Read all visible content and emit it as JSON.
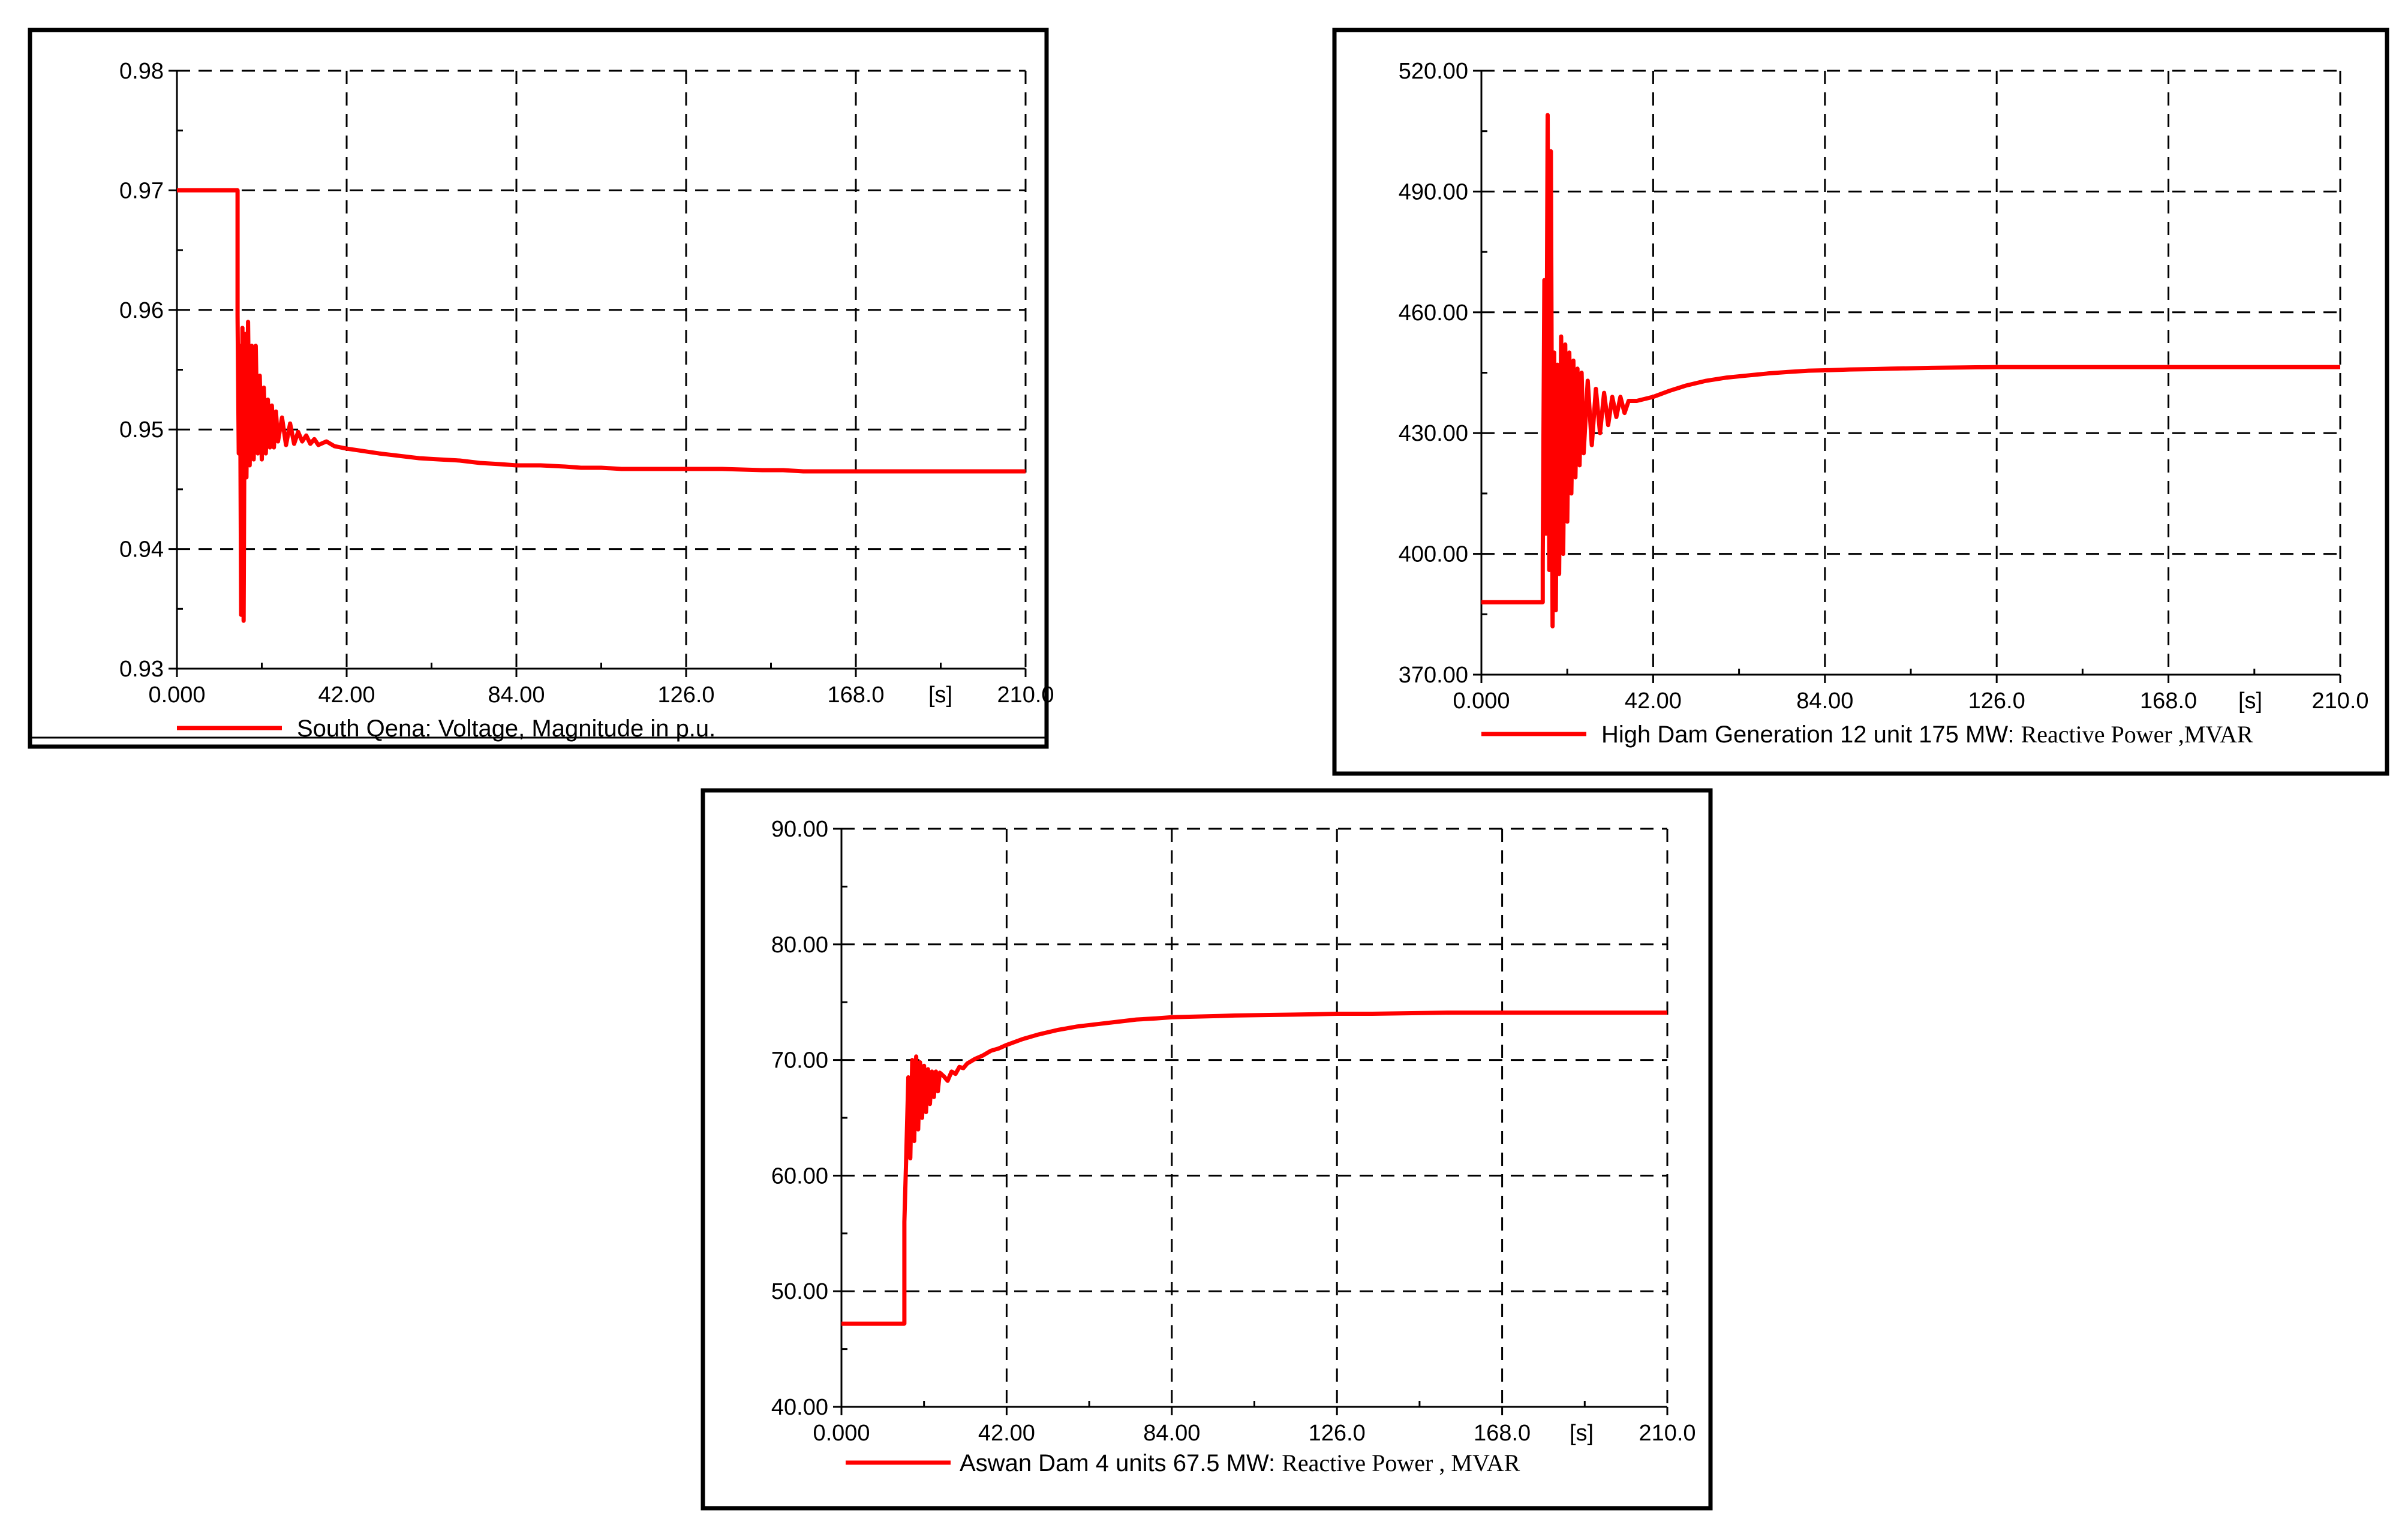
{
  "colors": {
    "trace": "#ff0000",
    "grid": "#000000",
    "frame": "#000000",
    "background": "#ffffff"
  },
  "chart_data": [
    {
      "id": "south-qena-voltage",
      "type": "line",
      "legend": {
        "parts": [
          {
            "text": "South Qena: Voltage, Magnitude in p.u.",
            "font": "sans"
          }
        ]
      },
      "x_unit_label": "[s]",
      "xlim": [
        0,
        210
      ],
      "ylim": [
        0.93,
        0.98
      ],
      "x_ticks": [
        "0.000",
        "42.00",
        "84.00",
        "126.0",
        "168.0",
        "210.0"
      ],
      "y_ticks": [
        "0.93",
        "0.94",
        "0.95",
        "0.96",
        "0.97",
        "0.98"
      ],
      "grid": true,
      "series": [
        {
          "name": "South Qena: Voltage, Magnitude in p.u.",
          "x": [
            0,
            15,
            15,
            15.3,
            15.6,
            15.9,
            16.2,
            16.5,
            16.8,
            17.2,
            17.6,
            18,
            18.5,
            19,
            19.5,
            20,
            20.5,
            21,
            21.5,
            22,
            22.5,
            23,
            23.5,
            24,
            24.5,
            25,
            26,
            27,
            28,
            29,
            30,
            31,
            32,
            33,
            34,
            35,
            37,
            39,
            42,
            46,
            50,
            55,
            60,
            65,
            70,
            75,
            80,
            84,
            90,
            96,
            100,
            105,
            110,
            120,
            126,
            135,
            145,
            150,
            155,
            162,
            168,
            180,
            190,
            200,
            210
          ],
          "y": [
            0.97,
            0.97,
            0.9595,
            0.948,
            0.957,
            0.9345,
            0.9585,
            0.934,
            0.958,
            0.946,
            0.959,
            0.947,
            0.957,
            0.9475,
            0.957,
            0.948,
            0.9545,
            0.9475,
            0.9535,
            0.948,
            0.9525,
            0.9485,
            0.952,
            0.9485,
            0.9515,
            0.949,
            0.951,
            0.9487,
            0.9505,
            0.9488,
            0.9498,
            0.949,
            0.9495,
            0.9488,
            0.9492,
            0.9487,
            0.949,
            0.9486,
            0.9484,
            0.9482,
            0.948,
            0.9478,
            0.9476,
            0.9475,
            0.9474,
            0.9472,
            0.9471,
            0.947,
            0.947,
            0.9469,
            0.9468,
            0.9468,
            0.9467,
            0.9467,
            0.9467,
            0.9467,
            0.9466,
            0.9466,
            0.9465,
            0.9465,
            0.9465,
            0.9465,
            0.9465,
            0.9465,
            0.9465
          ]
        }
      ]
    },
    {
      "id": "high-dam-reactive-power",
      "type": "line",
      "legend": {
        "parts": [
          {
            "text": "High Dam Generation 12 unit 175 MW: ",
            "font": "sans"
          },
          {
            "text": "Reactive Power  ,MVAR",
            "font": "serif"
          }
        ]
      },
      "x_unit_label": "[s]",
      "xlim": [
        0,
        210
      ],
      "ylim": [
        370,
        520
      ],
      "x_ticks": [
        "0.000",
        "42.00",
        "84.00",
        "126.0",
        "168.0",
        "210.0"
      ],
      "y_ticks": [
        "370.00",
        "400.00",
        "430.00",
        "460.00",
        "490.00",
        "520.00"
      ],
      "grid": true,
      "series": [
        {
          "name": "High Dam Generation 12 unit 175 MW: Reactive Power ,MVAR",
          "x": [
            0,
            15,
            15,
            15.4,
            15.8,
            16.2,
            16.6,
            17,
            17.4,
            17.8,
            18.2,
            18.6,
            19,
            19.5,
            20,
            20.5,
            21,
            21.5,
            22,
            22.5,
            23,
            23.5,
            24,
            24.5,
            25,
            26,
            27,
            28,
            29,
            30,
            31,
            32,
            33,
            34,
            35,
            36,
            38,
            40,
            42,
            46,
            50,
            55,
            60,
            65,
            70,
            75,
            80,
            84,
            90,
            96,
            100,
            105,
            110,
            118,
            126,
            135,
            145,
            155,
            168,
            180,
            190,
            200,
            210
          ],
          "y": [
            388,
            388,
            398,
            468,
            405,
            509,
            396,
            500,
            382,
            450,
            386,
            447,
            395,
            454,
            400,
            452,
            408,
            450,
            415,
            448,
            419,
            446,
            422,
            445,
            425,
            443,
            427,
            441,
            430,
            440,
            432,
            439,
            434,
            439,
            435,
            438,
            438,
            438.5,
            439,
            440.5,
            441.8,
            443,
            443.8,
            444.3,
            444.8,
            445.2,
            445.5,
            445.6,
            445.8,
            445.9,
            446,
            446.1,
            446.2,
            446.3,
            446.4,
            446.4,
            446.4,
            446.4,
            446.4,
            446.4,
            446.4,
            446.4,
            446.4
          ]
        }
      ]
    },
    {
      "id": "aswan-dam-reactive-power",
      "type": "line",
      "legend": {
        "parts": [
          {
            "text": "Aswan Dam 4 units 67.5 MW: ",
            "font": "sans"
          },
          {
            "text": "Reactive Power  , MVAR",
            "font": "serif"
          }
        ]
      },
      "x_unit_label": "[s]",
      "xlim": [
        0,
        210
      ],
      "ylim": [
        40,
        90
      ],
      "x_ticks": [
        "0.000",
        "42.00",
        "84.00",
        "126.0",
        "168.0",
        "210.0"
      ],
      "y_ticks": [
        "40.00",
        "50.00",
        "60.00",
        "70.00",
        "80.00",
        "90.00"
      ],
      "grid": true,
      "series": [
        {
          "name": "Aswan Dam 4 units 67.5 MW: Reactive Power , MVAR",
          "x": [
            0,
            16,
            16,
            16.5,
            17,
            17.5,
            18,
            18.5,
            19,
            19.5,
            20,
            20.5,
            21,
            21.5,
            22,
            22.5,
            23,
            23.5,
            24,
            24.5,
            25,
            26,
            27,
            28,
            29,
            30,
            31,
            32,
            34,
            36,
            38,
            40,
            42,
            46,
            50,
            55,
            60,
            65,
            70,
            75,
            80,
            84,
            90,
            96,
            100,
            110,
            120,
            126,
            135,
            145,
            155,
            168,
            180,
            190,
            200,
            210
          ],
          "y": [
            47.2,
            47.2,
            56,
            62,
            68.5,
            61.5,
            70,
            63,
            70.3,
            64,
            69.8,
            65,
            69.5,
            65.5,
            69.2,
            66.2,
            69,
            66.8,
            69,
            67.3,
            68.9,
            68.6,
            68.2,
            69,
            68.8,
            69.4,
            69.3,
            69.7,
            70.1,
            70.4,
            70.8,
            71,
            71.3,
            71.8,
            72.2,
            72.6,
            72.9,
            73.1,
            73.3,
            73.5,
            73.6,
            73.7,
            73.75,
            73.8,
            73.85,
            73.9,
            73.95,
            74,
            74,
            74.05,
            74.1,
            74.1,
            74.1,
            74.1,
            74.1,
            74.1
          ]
        }
      ]
    }
  ]
}
